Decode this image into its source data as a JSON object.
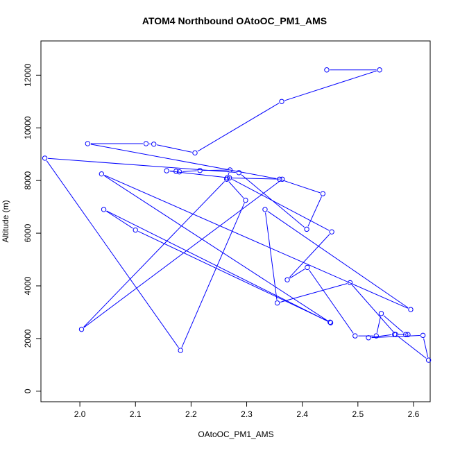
{
  "chart_data": {
    "type": "line",
    "title": "ATOM4 Northbound OAtoOC_PM1_AMS",
    "xlabel": "OAtoOC_PM1_AMS",
    "ylabel": "Altitude (m)",
    "xlim": [
      1.93,
      2.63
    ],
    "ylim": [
      -400,
      13300
    ],
    "xticks": [
      "2.0",
      "2.1",
      "2.2",
      "2.3",
      "2.4",
      "2.5",
      "2.6"
    ],
    "yticks": [
      "0",
      "2000",
      "4000",
      "6000",
      "8000",
      "10000",
      "12000"
    ],
    "series": [
      {
        "color": "#0000ff",
        "markers": "open-circle",
        "x": [
          2.444,
          2.539,
          2.363,
          2.207,
          2.133,
          2.119,
          2.014,
          2.359,
          2.437,
          2.408,
          2.286,
          1.937,
          2.181,
          2.298,
          2.264,
          2.003,
          2.364,
          2.265,
          2.27,
          2.216,
          2.179,
          2.173,
          2.156,
          2.269,
          2.453,
          2.373,
          2.409,
          2.495,
          2.533,
          2.542,
          2.586,
          2.59,
          2.566,
          2.519,
          2.617,
          2.627,
          2.568,
          2.486,
          2.355,
          2.333,
          2.595,
          2.039,
          2.451,
          2.043,
          2.1,
          2.45
        ],
        "y": [
          12200,
          12200,
          11000,
          9050,
          9380,
          9400,
          9400,
          8050,
          7500,
          6150,
          8300,
          8850,
          1550,
          7250,
          8050,
          2350,
          8050,
          8100,
          8400,
          8380,
          8330,
          8350,
          8370,
          8100,
          6050,
          4230,
          4700,
          2100,
          2100,
          2950,
          2150,
          2150,
          2160,
          2030,
          2120,
          1180,
          2150,
          4120,
          3350,
          6900,
          3100,
          8250,
          2600,
          6900,
          6120,
          2620
        ]
      }
    ]
  }
}
